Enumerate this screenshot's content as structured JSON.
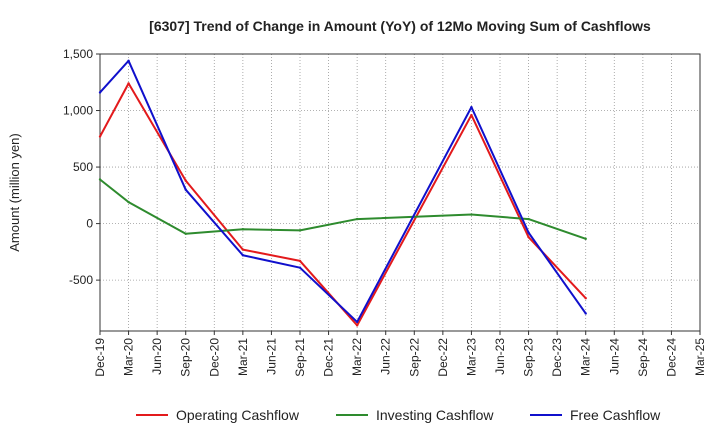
{
  "chart_data": {
    "type": "line",
    "title": "[6307]  Trend of Change in Amount (YoY) of 12Mo Moving Sum of Cashflows",
    "xlabel": "",
    "ylabel": "Amount (million yen)",
    "ylim": [
      -950,
      1500
    ],
    "yticks": [
      -500,
      0,
      500,
      1000,
      1500
    ],
    "ytick_labels": [
      "-500",
      "0",
      "500",
      "1,000",
      "1,500"
    ],
    "categories": [
      "Dec-19",
      "Mar-20",
      "Jun-20",
      "Sep-20",
      "Dec-20",
      "Mar-21",
      "Jun-21",
      "Sep-21",
      "Dec-21",
      "Mar-22",
      "Jun-22",
      "Sep-22",
      "Dec-22",
      "Mar-23",
      "Jun-23",
      "Sep-23",
      "Dec-23",
      "Mar-24",
      "Jun-24",
      "Sep-24",
      "Dec-24",
      "Mar-25"
    ],
    "grid": true,
    "legend_position": "bottom",
    "series": [
      {
        "name": "Operating Cashflow",
        "color": "#e31a1c",
        "values": [
          770,
          1240,
          null,
          380,
          null,
          -230,
          null,
          -330,
          null,
          -900,
          null,
          null,
          null,
          960,
          null,
          -120,
          null,
          -660,
          null,
          null,
          null,
          null
        ]
      },
      {
        "name": "Investing Cashflow",
        "color": "#2e8b2e",
        "values": [
          390,
          190,
          null,
          -90,
          null,
          -50,
          null,
          -60,
          null,
          40,
          null,
          null,
          null,
          80,
          null,
          40,
          null,
          -135,
          null,
          null,
          null,
          null
        ]
      },
      {
        "name": "Free Cashflow",
        "color": "#1010cc",
        "values": [
          1160,
          1440,
          null,
          300,
          null,
          -280,
          null,
          -390,
          null,
          -870,
          null,
          null,
          null,
          1030,
          null,
          -80,
          null,
          -795,
          null,
          null,
          null,
          null
        ]
      }
    ]
  }
}
